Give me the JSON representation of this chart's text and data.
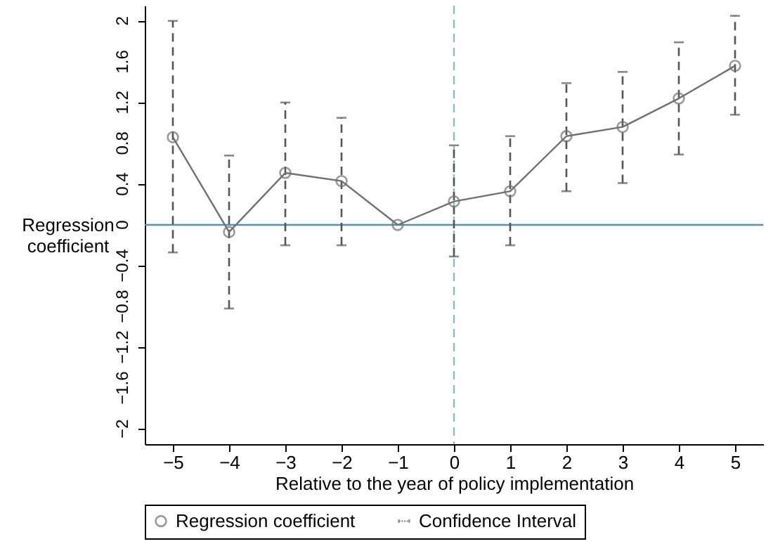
{
  "chart_data": {
    "type": "line",
    "xlabel": "Relative to the year of policy implementation",
    "ylabel": "Regression coefficient",
    "x": [
      -5,
      -4,
      -3,
      -2,
      -1,
      0,
      1,
      2,
      3,
      4,
      5
    ],
    "series": [
      {
        "name": "Regression coefficient",
        "color": "#707070",
        "values": [
          0.86,
          -0.07,
          0.51,
          0.43,
          0,
          0.23,
          0.33,
          0.87,
          0.96,
          1.24,
          1.56
        ],
        "errors": [
          [
            -0.27,
            2.0
          ],
          [
            -0.82,
            0.68
          ],
          [
            -0.2,
            1.2
          ],
          [
            -0.2,
            1.05
          ],
          null,
          [
            -0.31,
            0.78
          ],
          [
            -0.2,
            0.87
          ],
          [
            0.33,
            1.39
          ],
          [
            0.41,
            1.5
          ],
          [
            0.69,
            1.79
          ],
          [
            1.08,
            2.05
          ]
        ]
      }
    ],
    "xlim": [
      -5.5,
      5.5
    ],
    "xticks": [
      -5,
      -4,
      -3,
      -2,
      -1,
      0,
      1,
      2,
      3,
      4,
      5
    ],
    "ylim": [
      -2.15,
      2.15
    ],
    "yticks": [
      -2,
      -1.6,
      -1.2,
      -0.8,
      -0.4,
      0,
      0.4,
      0.8,
      1.2,
      1.6,
      2
    ],
    "ref_lines": [
      {
        "axis": "y",
        "value": 0,
        "color": "#5b8fa3",
        "line_style": "solid"
      },
      {
        "axis": "x",
        "value": 0,
        "color": "#8fbcc4",
        "line_style": "dashed"
      }
    ],
    "annotations": [
      "Confidence Interval"
    ],
    "marker": "circle",
    "line_style": "solid",
    "grid": false,
    "legend": "bottom"
  }
}
